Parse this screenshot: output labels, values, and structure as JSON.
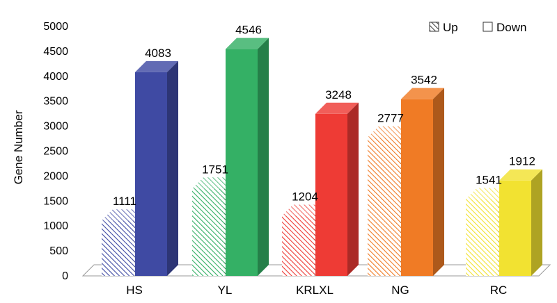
{
  "chart_data": {
    "type": "bar",
    "categories": [
      "HS",
      "YL",
      "KRLXL",
      "NG",
      "RC"
    ],
    "series": [
      {
        "name": "Up",
        "values": [
          1111,
          1751,
          1204,
          2777,
          1541
        ]
      },
      {
        "name": "Down",
        "values": [
          4083,
          4546,
          3248,
          3542,
          1912
        ]
      }
    ],
    "ylabel": "Gene Number",
    "xlabel": "",
    "ylim": [
      0,
      5000
    ],
    "yticks": [
      0,
      500,
      1000,
      1500,
      2000,
      2500,
      3000,
      3500,
      4000,
      4500,
      5000
    ],
    "legend_position": "top-right",
    "grid": false,
    "style": "3d-bar",
    "colors": {
      "HS": "#3F4AA3",
      "YL": "#34B065",
      "KRLXL": "#EE3B35",
      "NG": "#F07B25",
      "RC": "#F2E231"
    }
  }
}
